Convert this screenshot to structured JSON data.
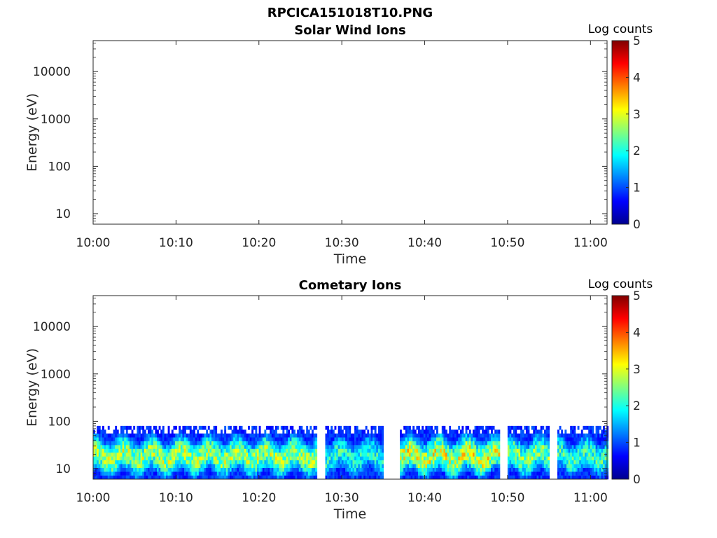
{
  "figure_title": "RPCICA151018T10.PNG",
  "chart_data": [
    {
      "type": "heatmap",
      "title": "Solar Wind Ions",
      "xlabel": "Time",
      "ylabel": "Energy (eV)",
      "x_ticks": [
        "10:00",
        "10:10",
        "10:20",
        "10:30",
        "10:40",
        "10:50",
        "11:00"
      ],
      "x_range": [
        "10:00",
        "11:02"
      ],
      "y_scale": "log",
      "y_ticks": [
        10,
        100,
        1000,
        10000
      ],
      "y_tick_labels": [
        "10",
        "100",
        "1000",
        "10000"
      ],
      "y_range": [
        6,
        45000
      ],
      "colorbar_label": "Log counts",
      "colorbar_range": [
        0,
        5
      ],
      "colorbar_ticks": [
        "0",
        "1",
        "2",
        "3",
        "4",
        "5"
      ],
      "colormap": "jet",
      "data_segments": []
    },
    {
      "type": "heatmap",
      "title": "Cometary Ions",
      "xlabel": "Time",
      "ylabel": "Energy (eV)",
      "x_ticks": [
        "10:00",
        "10:10",
        "10:20",
        "10:30",
        "10:40",
        "10:50",
        "11:00"
      ],
      "x_range": [
        "10:00",
        "11:02"
      ],
      "y_scale": "log",
      "y_ticks": [
        10,
        100,
        1000,
        10000
      ],
      "y_tick_labels": [
        "10",
        "100",
        "1000",
        "10000"
      ],
      "y_range": [
        6,
        45000
      ],
      "colorbar_label": "Log counts",
      "colorbar_range": [
        0,
        5
      ],
      "colorbar_ticks": [
        "0",
        "1",
        "2",
        "3",
        "4",
        "5"
      ],
      "colormap": "jet",
      "energy_max_ev": 80,
      "data_segments": [
        {
          "start": "10:00",
          "end": "10:27",
          "peak_log_counts": 3.4
        },
        {
          "start": "10:28",
          "end": "10:35",
          "peak_log_counts": 2.6
        },
        {
          "start": "10:37",
          "end": "10:49",
          "peak_log_counts": 3.7
        },
        {
          "start": "10:50",
          "end": "10:55",
          "peak_log_counts": 3.2
        },
        {
          "start": "10:56",
          "end": "11:02",
          "peak_log_counts": 2.8
        }
      ]
    }
  ]
}
